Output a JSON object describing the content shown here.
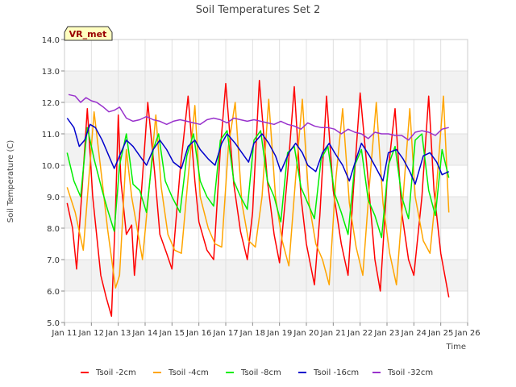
{
  "chart_data": {
    "type": "line",
    "title": "Soil Temperatures Set 2",
    "xlabel": "Time",
    "ylabel": "Soil Temperature (C)",
    "badge": "VR_met",
    "xlim": [
      11,
      26
    ],
    "ylim": [
      5.0,
      14.0
    ],
    "x_ticks": [
      {
        "value": 11,
        "label": "Jan 11"
      },
      {
        "value": 12,
        "label": "Jan 12"
      },
      {
        "value": 13,
        "label": "Jan 13"
      },
      {
        "value": 14,
        "label": "Jan 14"
      },
      {
        "value": 15,
        "label": "Jan 15"
      },
      {
        "value": 16,
        "label": "Jan 16"
      },
      {
        "value": 17,
        "label": "Jan 17"
      },
      {
        "value": 18,
        "label": "Jan 18"
      },
      {
        "value": 19,
        "label": "Jan 19"
      },
      {
        "value": 20,
        "label": "Jan 20"
      },
      {
        "value": 21,
        "label": "Jan 21"
      },
      {
        "value": 22,
        "label": "Jan 22"
      },
      {
        "value": 23,
        "label": "Jan 23"
      },
      {
        "value": 24,
        "label": "Jan 24"
      },
      {
        "value": 25,
        "label": "Jan 25"
      },
      {
        "value": 26,
        "label": "Jan 26"
      }
    ],
    "y_ticks": [
      {
        "value": 5,
        "label": "5.0"
      },
      {
        "value": 6,
        "label": "6.0"
      },
      {
        "value": 7,
        "label": "7.0"
      },
      {
        "value": 8,
        "label": "8.0"
      },
      {
        "value": 9,
        "label": "9.0"
      },
      {
        "value": 10,
        "label": "10.0"
      },
      {
        "value": 11,
        "label": "11.0"
      },
      {
        "value": 12,
        "label": "12.0"
      },
      {
        "value": 13,
        "label": "13.0"
      },
      {
        "value": 14,
        "label": "14.0"
      }
    ],
    "grid": true,
    "legend_position": "bottom",
    "series": [
      {
        "name": "Tsoil -2cm",
        "color": "#ff0000",
        "x": [
          11.1,
          11.3,
          11.45,
          11.65,
          11.85,
          12.05,
          12.35,
          12.55,
          12.75,
          12.9,
          13.0,
          13.1,
          13.3,
          13.5,
          13.6,
          13.85,
          14.1,
          14.35,
          14.55,
          14.8,
          15.0,
          15.3,
          15.6,
          15.85,
          16.0,
          16.3,
          16.55,
          16.8,
          17.0,
          17.3,
          17.55,
          17.8,
          18.0,
          18.25,
          18.55,
          18.8,
          19.0,
          19.3,
          19.55,
          19.8,
          20.0,
          20.3,
          20.5,
          20.75,
          21.0,
          21.3,
          21.55,
          21.75,
          22.0,
          22.3,
          22.55,
          22.75,
          23.0,
          23.3,
          23.55,
          23.8,
          24.0,
          24.3,
          24.55,
          24.75,
          25.0,
          25.3
        ],
        "y": [
          8.8,
          8.0,
          6.7,
          9.2,
          11.8,
          9.0,
          6.5,
          5.8,
          5.2,
          8.6,
          11.6,
          9.5,
          7.8,
          8.1,
          6.5,
          9.0,
          12.0,
          9.8,
          7.8,
          7.2,
          6.7,
          9.8,
          12.2,
          9.5,
          8.2,
          7.3,
          7.0,
          10.5,
          12.6,
          9.4,
          7.9,
          7.0,
          8.5,
          12.7,
          9.5,
          7.8,
          6.9,
          9.7,
          12.5,
          9.0,
          7.5,
          6.2,
          8.4,
          12.2,
          9.2,
          7.5,
          6.5,
          9.2,
          12.3,
          9.5,
          7.0,
          6.0,
          9.5,
          11.8,
          8.5,
          7.0,
          6.5,
          9.0,
          12.2,
          9.2,
          7.2,
          5.8
        ]
      },
      {
        "name": "Tsoil -4cm",
        "color": "#ffa500",
        "x": [
          11.1,
          11.4,
          11.7,
          11.9,
          12.1,
          12.4,
          12.6,
          12.9,
          13.05,
          13.3,
          13.5,
          13.6,
          13.9,
          14.1,
          14.4,
          14.6,
          14.85,
          15.1,
          15.35,
          15.6,
          15.85,
          16.05,
          16.35,
          16.6,
          16.85,
          17.1,
          17.35,
          17.6,
          17.85,
          18.1,
          18.35,
          18.6,
          18.85,
          19.1,
          19.35,
          19.6,
          19.85,
          20.1,
          20.35,
          20.6,
          20.85,
          21.1,
          21.35,
          21.6,
          21.85,
          22.1,
          22.35,
          22.6,
          22.85,
          23.1,
          23.35,
          23.6,
          23.85,
          24.05,
          24.35,
          24.6,
          24.85,
          25.1,
          25.3
        ],
        "y": [
          9.3,
          8.5,
          7.3,
          9.5,
          11.7,
          9.5,
          8.0,
          6.1,
          6.5,
          10.5,
          9.0,
          8.5,
          7.0,
          8.8,
          11.6,
          9.3,
          7.8,
          7.3,
          7.2,
          9.6,
          11.9,
          9.0,
          8.0,
          7.5,
          7.4,
          10.6,
          12.0,
          8.8,
          7.6,
          7.4,
          9.0,
          12.1,
          9.0,
          7.6,
          6.8,
          9.6,
          12.1,
          8.8,
          7.5,
          7.0,
          6.2,
          9.6,
          11.8,
          8.8,
          7.4,
          6.5,
          9.4,
          12.0,
          8.8,
          7.2,
          6.2,
          9.0,
          11.8,
          9.0,
          7.6,
          7.2,
          9.4,
          12.2,
          8.5
        ]
      },
      {
        "name": "Tsoil -8cm",
        "color": "#00ee00",
        "x": [
          11.1,
          11.35,
          11.6,
          11.85,
          12.1,
          12.4,
          12.6,
          12.85,
          13.05,
          13.3,
          13.55,
          13.8,
          14.05,
          14.3,
          14.5,
          14.75,
          15.0,
          15.3,
          15.55,
          15.8,
          16.05,
          16.3,
          16.55,
          16.8,
          17.05,
          17.3,
          17.55,
          17.8,
          18.05,
          18.3,
          18.55,
          18.8,
          19.05,
          19.3,
          19.55,
          19.8,
          20.05,
          20.3,
          20.55,
          20.8,
          21.05,
          21.3,
          21.55,
          21.8,
          22.05,
          22.3,
          22.55,
          22.8,
          23.05,
          23.3,
          23.55,
          23.8,
          24.05,
          24.3,
          24.55,
          24.8,
          25.05,
          25.3
        ],
        "y": [
          10.4,
          9.5,
          9.0,
          11.2,
          10.2,
          9.2,
          8.6,
          7.9,
          10.0,
          11.0,
          9.4,
          9.2,
          8.5,
          10.5,
          11.0,
          9.5,
          9.0,
          8.5,
          10.3,
          11.0,
          9.5,
          9.0,
          8.7,
          10.8,
          11.1,
          9.5,
          9.0,
          8.6,
          10.8,
          11.1,
          9.5,
          9.0,
          8.2,
          10.4,
          10.6,
          9.3,
          8.8,
          8.3,
          10.2,
          10.6,
          9.1,
          8.5,
          7.8,
          10.0,
          10.5,
          8.9,
          8.4,
          7.7,
          10.0,
          10.6,
          9.0,
          8.3,
          10.8,
          11.0,
          9.2,
          8.4,
          10.5,
          9.6
        ]
      },
      {
        "name": "Tsoil -16cm",
        "color": "#0000cc",
        "x": [
          11.1,
          11.35,
          11.55,
          11.75,
          11.95,
          12.15,
          12.4,
          12.65,
          12.85,
          13.1,
          13.3,
          13.55,
          13.8,
          14.05,
          14.3,
          14.55,
          14.8,
          15.05,
          15.35,
          15.6,
          15.85,
          16.05,
          16.35,
          16.6,
          16.85,
          17.05,
          17.35,
          17.6,
          17.85,
          18.05,
          18.35,
          18.6,
          18.85,
          19.05,
          19.35,
          19.6,
          19.85,
          20.05,
          20.35,
          20.6,
          20.85,
          21.05,
          21.35,
          21.6,
          21.85,
          22.05,
          22.35,
          22.6,
          22.85,
          23.05,
          23.35,
          23.6,
          23.85,
          24.05,
          24.35,
          24.6,
          24.85,
          25.05,
          25.3
        ],
        "y": [
          11.5,
          11.2,
          10.6,
          10.8,
          11.3,
          11.2,
          10.8,
          10.3,
          9.9,
          10.4,
          10.8,
          10.6,
          10.3,
          10.0,
          10.5,
          10.8,
          10.5,
          10.1,
          9.9,
          10.6,
          10.8,
          10.5,
          10.2,
          10.0,
          10.7,
          11.0,
          10.7,
          10.4,
          10.1,
          10.7,
          11.0,
          10.7,
          10.3,
          9.8,
          10.4,
          10.7,
          10.4,
          10.0,
          9.8,
          10.4,
          10.7,
          10.4,
          10.0,
          9.5,
          10.2,
          10.7,
          10.3,
          9.9,
          9.5,
          10.4,
          10.5,
          10.2,
          9.8,
          9.4,
          10.3,
          10.4,
          10.1,
          9.7,
          9.8
        ]
      },
      {
        "name": "Tsoil -32cm",
        "color": "#9932cc",
        "x": [
          11.15,
          11.4,
          11.6,
          11.8,
          12.0,
          12.2,
          12.45,
          12.65,
          12.85,
          13.05,
          13.3,
          13.55,
          13.8,
          14.05,
          14.3,
          14.55,
          14.8,
          15.05,
          15.3,
          15.55,
          15.8,
          16.05,
          16.3,
          16.55,
          16.8,
          17.05,
          17.3,
          17.55,
          17.8,
          18.05,
          18.3,
          18.55,
          18.8,
          19.05,
          19.3,
          19.55,
          19.8,
          20.05,
          20.3,
          20.55,
          20.8,
          21.05,
          21.3,
          21.55,
          21.8,
          22.05,
          22.3,
          22.55,
          22.8,
          23.05,
          23.3,
          23.55,
          23.8,
          24.05,
          24.3,
          24.55,
          24.8,
          25.05,
          25.3
        ],
        "y": [
          12.25,
          12.2,
          12.0,
          12.15,
          12.05,
          12.0,
          11.85,
          11.7,
          11.75,
          11.85,
          11.5,
          11.4,
          11.45,
          11.55,
          11.45,
          11.4,
          11.3,
          11.4,
          11.45,
          11.4,
          11.35,
          11.3,
          11.45,
          11.5,
          11.45,
          11.35,
          11.5,
          11.45,
          11.4,
          11.45,
          11.4,
          11.35,
          11.3,
          11.4,
          11.3,
          11.25,
          11.15,
          11.35,
          11.25,
          11.2,
          11.2,
          11.15,
          11.0,
          11.15,
          11.05,
          11.0,
          10.85,
          11.05,
          11.0,
          11.0,
          10.95,
          10.95,
          10.8,
          11.05,
          11.1,
          11.05,
          10.95,
          11.15,
          11.2
        ]
      }
    ]
  }
}
